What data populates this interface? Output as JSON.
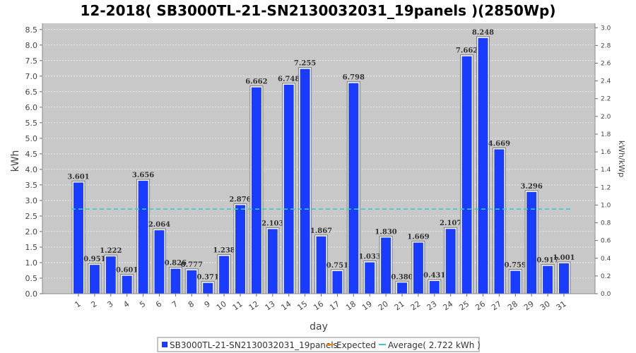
{
  "chart_data": {
    "type": "bar",
    "title": "12-2018( SB3000TL-21-SN2130032031_19panels )(2850Wp)",
    "xlabel": "day",
    "ylabel": "kWh",
    "y2label": "kWh/kWp",
    "ylim": [
      0,
      8.7
    ],
    "y2lim": [
      0,
      3.05
    ],
    "yticks": [
      "0.0",
      "0.5",
      "1.0",
      "1.5",
      "2.0",
      "2.5",
      "3.0",
      "3.5",
      "4.0",
      "4.5",
      "5.0",
      "5.5",
      "6.0",
      "6.5",
      "7.0",
      "7.5",
      "8.0",
      "8.5"
    ],
    "y2ticks": [
      "0.0",
      "0.2",
      "0.4",
      "0.6",
      "0.8",
      "1.0",
      "1.2",
      "1.4",
      "1.6",
      "1.8",
      "2.0",
      "2.2",
      "2.4",
      "2.6",
      "2.8",
      "3.0"
    ],
    "categories": [
      "1",
      "2",
      "3",
      "4",
      "5",
      "6",
      "7",
      "8",
      "9",
      "10",
      "11",
      "12",
      "13",
      "14",
      "15",
      "16",
      "17",
      "18",
      "19",
      "20",
      "21",
      "22",
      "23",
      "24",
      "25",
      "26",
      "27",
      "28",
      "29",
      "30",
      "31"
    ],
    "series": [
      {
        "name": "SB3000TL-21-SN2130032031_19panels",
        "color": "#1a3cff",
        "values": [
          3.601,
          0.951,
          1.222,
          0.601,
          3.656,
          2.064,
          0.826,
          0.777,
          0.371,
          1.238,
          2.876,
          6.662,
          2.103,
          6.748,
          7.255,
          1.867,
          0.751,
          6.798,
          1.033,
          1.83,
          0.38,
          1.669,
          0.431,
          2.107,
          7.662,
          8.248,
          4.669,
          0.759,
          3.296,
          0.917,
          1.001
        ],
        "labels": [
          "3.601",
          "0.951",
          "1.222",
          "0.601",
          "3.656",
          "2.064",
          "0.826",
          "0.777",
          "0.371",
          "1.238",
          "2.876",
          "6.662",
          "2.103",
          "6.748",
          "7.255",
          "1.867",
          "0.751",
          "6.798",
          "1.033",
          "1.830",
          "0.380",
          "1.669",
          "0.431",
          "2.107",
          "7.662",
          "8.248",
          "4.669",
          "0.759",
          "3.296",
          "0.917",
          "1.001"
        ]
      }
    ],
    "average": {
      "value": 2.722,
      "color": "#33cccc"
    },
    "expected_color": "#ff8800",
    "legend": {
      "position": "bottom",
      "items": [
        "SB3000TL-21-SN2130032031_19panels",
        "Expected",
        "Average( 2.722 kWh  )"
      ]
    },
    "grid": true,
    "plot_background": "#c8c8c8"
  }
}
